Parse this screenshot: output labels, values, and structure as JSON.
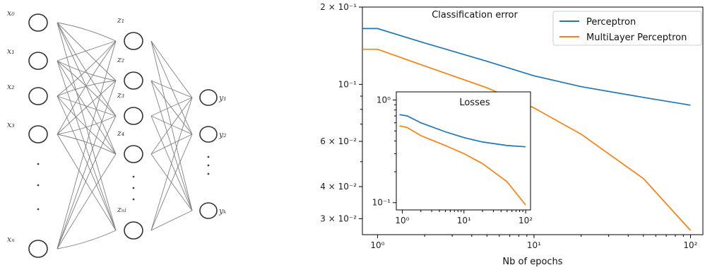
{
  "network": {
    "inputs": [
      "x₀",
      "x₁",
      "x₂",
      "x₃",
      "xₙ"
    ],
    "hidden": [
      "z₁",
      "z₂",
      "z₃",
      "z₄",
      "zₙₗ"
    ],
    "outputs": [
      "y₁",
      "y₂",
      "yₖ"
    ]
  },
  "chart_data": [
    {
      "type": "line",
      "title": "Classification error",
      "xlabel": "Nb of epochs",
      "ylabel": "",
      "xscale": "log",
      "yscale": "log",
      "xlim": [
        0.8,
        120
      ],
      "ylim": [
        0.026,
        0.2
      ],
      "x_ticks": [
        "10⁰",
        "10¹",
        "10²"
      ],
      "y_ticks": [
        "2 × 10⁻¹",
        "10⁻¹",
        "6 × 10⁻²",
        "4 × 10⁻²",
        "3 × 10⁻²"
      ],
      "legend": "top-right",
      "grid": false,
      "series": [
        {
          "name": "Perceptron",
          "color": "#1f77b4",
          "x": [
            0.8,
            1,
            2,
            5,
            10,
            20,
            50,
            100
          ],
          "y": [
            0.165,
            0.165,
            0.145,
            0.123,
            0.108,
            0.098,
            0.089,
            0.083
          ]
        },
        {
          "name": "MultiLayer Perceptron",
          "color": "#ff7f0e",
          "x": [
            0.8,
            1,
            2,
            5,
            10,
            20,
            50,
            100
          ],
          "y": [
            0.137,
            0.137,
            0.118,
            0.097,
            0.081,
            0.064,
            0.043,
            0.027
          ]
        }
      ]
    },
    {
      "type": "line",
      "title": "Losses",
      "xscale": "log",
      "yscale": "log",
      "xlim": [
        0.8,
        120
      ],
      "ylim": [
        0.085,
        1.2
      ],
      "x_ticks": [
        "10⁰",
        "10¹",
        "10²"
      ],
      "y_ticks": [
        "10⁰",
        "10⁻¹"
      ],
      "series": [
        {
          "color": "#1f77b4",
          "x": [
            0.9,
            1.2,
            2,
            5,
            10,
            20,
            50,
            100
          ],
          "y": [
            0.72,
            0.7,
            0.6,
            0.49,
            0.43,
            0.39,
            0.36,
            0.35
          ]
        },
        {
          "color": "#ff7f0e",
          "x": [
            0.9,
            1.2,
            2,
            5,
            10,
            20,
            50,
            100
          ],
          "y": [
            0.56,
            0.54,
            0.45,
            0.36,
            0.3,
            0.24,
            0.16,
            0.095
          ]
        }
      ]
    }
  ]
}
